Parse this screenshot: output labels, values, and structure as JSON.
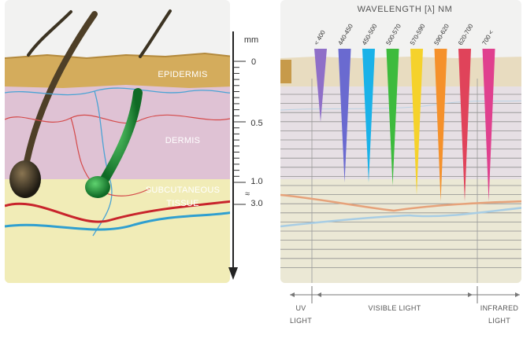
{
  "scale": {
    "unit": "mm",
    "ticks": [
      "0",
      "0.5",
      "1.0",
      "3.0"
    ],
    "break_symbol": "≈"
  },
  "layers": {
    "epidermis": "EPIDERMIS",
    "dermis": "DERMIS",
    "subcutaneous_line1": "SUBCUTANEOUS",
    "subcutaneous_line2": "TISSUE"
  },
  "wavelength_panel": {
    "title": "WAVELENGTH [λ] NM",
    "bands": [
      {
        "label": "< 400",
        "color": "#8f6fc8"
      },
      {
        "label": "440-450",
        "color": "#6a6ad0"
      },
      {
        "label": "450-500",
        "color": "#1ab2e8"
      },
      {
        "label": "500-570",
        "color": "#3dbb3d"
      },
      {
        "label": "570-590",
        "color": "#f5d22b"
      },
      {
        "label": "590-620",
        "color": "#f5912b"
      },
      {
        "label": "620-700",
        "color": "#e0435a"
      },
      {
        "label": "700 <",
        "color": "#e0408e"
      }
    ]
  },
  "spectrum_regions": {
    "uv_line1": "UV",
    "uv_line2": "LIGHT",
    "visible": "VISIBLE LIGHT",
    "ir_line1": "INFRARED",
    "ir_line2": "LIGHT"
  }
}
